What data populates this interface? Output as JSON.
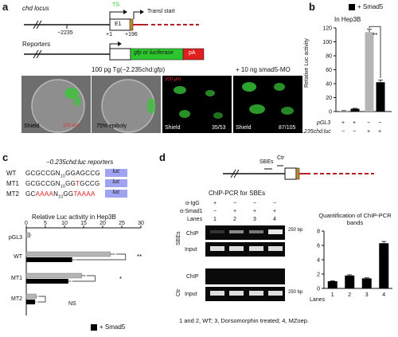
{
  "panel_a": {
    "letter": "a",
    "locus_label": "chd locus",
    "ts_label": "TS",
    "exon_label": "E1",
    "transl_label": "Transl start",
    "pos_m2235": "−2235",
    "pos_p1": "+1",
    "pos_p196": "+196",
    "reporters_label": "Reporters",
    "reporter_box": "gfp or luciferase",
    "pa_label": "pA",
    "injection_label": "100 pg Tg(−2.235chd:gfp)",
    "mo_label": "+ 10 ng smad5-MO",
    "images": [
      {
        "stage": "Shield",
        "scale": "100 μm",
        "count": ""
      },
      {
        "stage": "75% epiboly",
        "scale": "",
        "count": ""
      },
      {
        "stage": "Shield",
        "scale": "",
        "count": "35/53"
      },
      {
        "stage": "Shield",
        "scale": "",
        "count": "87/105"
      }
    ],
    "scale_fluor": "200 μm"
  },
  "panel_b": {
    "letter": "b",
    "legend": "+ Smad5",
    "cell": "In Hep3B",
    "ylabel": "Relative Luc activity",
    "row1_label": "pGL3",
    "row1_signs": [
      "+",
      "+",
      "−",
      "−"
    ],
    "row2_label": "−2.235chd:luc",
    "row2_signs": [
      "−",
      "−",
      "+",
      "+"
    ],
    "sig": "**",
    "colors": {
      "ctrl": "#b5b5b5",
      "smad5": "#000000"
    }
  },
  "panel_c": {
    "letter": "c",
    "title": "−0.235chd:luc reporters",
    "reporters": [
      {
        "name": "WT",
        "seq": "GCGCCGN10GGAGCCG",
        "luc": "luc"
      },
      {
        "name": "MT1",
        "seq": "GCGCCGN10GGTGCCG",
        "luc": "luc"
      },
      {
        "name": "MT2",
        "seq": "GCAAAAN10GGTAAAA",
        "luc": "luc"
      }
    ],
    "chart_title": "Relative Luc activity in Hep3B",
    "legend": "+ Smad5",
    "sig_wt": "**",
    "sig_mt1": "*",
    "sig_mt2": "NS"
  },
  "panel_d": {
    "letter": "d",
    "sbe_label": "SBEs",
    "ctr_label": "Ctr",
    "chip_title": "ChIP-PCR for SBEs",
    "igg_label": "α-IgG",
    "igg_signs": [
      "+",
      "−",
      "−",
      "−"
    ],
    "smad_label": "α-Smad1",
    "smad_signs": [
      "−",
      "+",
      "+",
      "+"
    ],
    "lanes_label": "Lanes",
    "lanes": [
      "1",
      "2",
      "3",
      "4"
    ],
    "side_sbes": "SBEs",
    "side_ctr": "Ctr",
    "chip": "ChIP",
    "input": "Input",
    "bp": "250 bp",
    "quant_title": "Quantification of ChIP-PCR bands",
    "footnote": "1 and 2, WT; 3, Dorsomorphin treated; 4, MZoep."
  },
  "chart_data": [
    {
      "type": "bar",
      "panel": "b",
      "ylabel": "Relative Luc activity",
      "ylim": [
        0,
        120
      ],
      "yticks": [
        0,
        20,
        40,
        60,
        80,
        100,
        120
      ],
      "categories": [
        "pGL3",
        "pGL3 + Smad5",
        "−2.235chd:luc",
        "−2.235chd:luc + Smad5"
      ],
      "values": [
        1,
        4,
        114,
        42
      ],
      "errors": [
        0.3,
        0.6,
        4,
        3
      ],
      "colors": [
        "#b5b5b5",
        "#000000",
        "#b5b5b5",
        "#000000"
      ]
    },
    {
      "type": "bar",
      "panel": "c",
      "orientation": "horizontal",
      "title": "Relative Luc activity in Hep3B",
      "xlim": [
        0,
        30
      ],
      "xticks": [
        0,
        5,
        10,
        15,
        20,
        25,
        30
      ],
      "categories": [
        "pGL3",
        "WT",
        "MT1",
        "MT2"
      ],
      "series": [
        {
          "values": [
            1,
            22,
            14.5,
            2.6
          ],
          "errors": [
            0.3,
            1.2,
            1,
            0.3
          ]
        },
        {
          "name": "+ Smad5",
          "values": [
            0,
            12,
            11,
            2.3
          ],
          "errors": [
            0,
            0.8,
            0.7,
            0.3
          ]
        }
      ]
    },
    {
      "type": "bar",
      "panel": "d",
      "title": "Quantification of ChIP-PCR bands",
      "xlabel": "Lanes",
      "ylim": [
        0,
        8
      ],
      "yticks": [
        0,
        2,
        4,
        6,
        8
      ],
      "categories": [
        "1",
        "2",
        "3",
        "4"
      ],
      "values": [
        1.0,
        1.8,
        1.4,
        6.3
      ],
      "errors": [
        0.05,
        0.1,
        0.08,
        0.25
      ]
    }
  ]
}
